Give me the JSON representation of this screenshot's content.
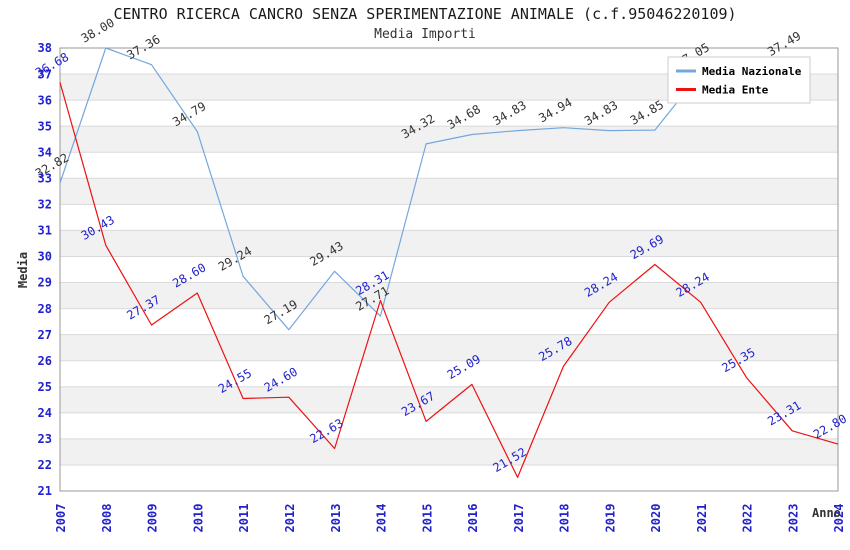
{
  "chart_data": {
    "type": "line",
    "title": "CENTRO RICERCA CANCRO SENZA SPERIMENTAZIONE ANIMALE (c.f.95046220109)",
    "subtitle": "Media Importi",
    "xlabel": "Anno",
    "ylabel": "Media",
    "ylim": [
      21,
      38
    ],
    "ytick_step": 1,
    "grid": "horizontal",
    "alternating_bands": true,
    "legend_position": "top-right",
    "categories": [
      "2007",
      "2008",
      "2009",
      "2010",
      "2011",
      "2012",
      "2013",
      "2014",
      "2015",
      "2016",
      "2017",
      "2018",
      "2019",
      "2020",
      "2021",
      "2022",
      "2023",
      "2024"
    ],
    "series": [
      {
        "name": "Media Nazionale",
        "color": "#74a7dd",
        "label_color": "#333333",
        "values": [
          32.82,
          38.0,
          37.36,
          34.79,
          29.24,
          27.19,
          29.43,
          27.71,
          34.32,
          34.68,
          34.83,
          34.94,
          34.83,
          34.85,
          37.05,
          36.5,
          37.49,
          null
        ],
        "labels": [
          "32.82",
          "38.00",
          "37.36",
          "34.79",
          "29.24",
          "27.19",
          "29.43",
          "27.71",
          "34.32",
          "34.68",
          "34.83",
          "34.94",
          "34.83",
          "34.85",
          "37.05",
          "",
          "37.49",
          ""
        ]
      },
      {
        "name": "Media Ente",
        "color": "#ee1111",
        "label_color": "#2222cc",
        "values": [
          36.68,
          30.43,
          27.37,
          28.6,
          24.55,
          24.6,
          22.63,
          28.31,
          23.67,
          25.09,
          21.52,
          25.78,
          28.24,
          29.69,
          28.24,
          25.35,
          23.31,
          22.8
        ],
        "labels": [
          "36.68",
          "30.43",
          "27.37",
          "28.60",
          "24.55",
          "24.60",
          "22.63",
          "28.31",
          "23.67",
          "25.09",
          "21.52",
          "25.78",
          "28.24",
          "29.69",
          "28.24",
          "25.35",
          "23.31",
          "22.80"
        ]
      }
    ]
  },
  "legend": {
    "items": [
      {
        "label": "Media Nazionale",
        "color": "#74a7dd"
      },
      {
        "label": "Media Ente",
        "color": "#ee1111"
      }
    ]
  },
  "colors": {
    "band": "#f1f1f1",
    "grid": "#dadada",
    "frame": "#999999",
    "tick_label": "#2222cc",
    "axis_title": "#333333",
    "legend_bg": "#ffffff",
    "legend_border": "#cccccc",
    "legend_text": "#000000"
  }
}
